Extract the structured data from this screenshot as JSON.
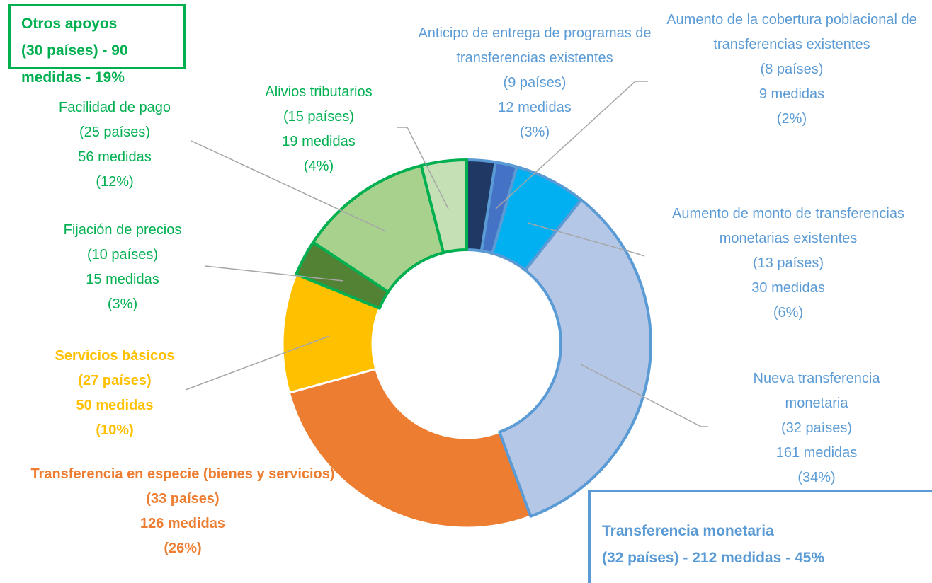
{
  "chart_data": {
    "type": "donut",
    "categories": [
      "Anticipo de entrega de programas de transferencias existentes",
      "Aumento de la cobertura poblacional de transferencias existentes",
      "Aumento de monto de transferencias monetarias existentes",
      "Nueva transferencia monetaria",
      "Transferencia en especie (bienes y servicios)",
      "Servicios básicos",
      "Fijación de precios",
      "Facilidad de pago",
      "Alivios tributarios"
    ],
    "countries": [
      "(9 países)",
      "(8 países)",
      "(13 países)",
      "(32 países)",
      "(33 países)",
      "(27 países)",
      "(10 países)",
      "(25 países)",
      "(15 países)"
    ],
    "values": [
      12,
      9,
      30,
      161,
      126,
      50,
      15,
      56,
      19
    ],
    "value_labels": [
      "12 medidas",
      "9 medidas",
      "30 medidas",
      "161 medidas",
      "126 medidas",
      "50 medidas",
      "15 medidas",
      "56 medidas",
      "19 medidas"
    ],
    "percent_labels": [
      "(3%)",
      "(2%)",
      "(6%)",
      "(34%)",
      "(26%)",
      "(10%)",
      "(3%)",
      "(12%)",
      "(4%)"
    ],
    "colors": [
      "#1f3864",
      "#4472c4",
      "#00b0f0",
      "#b4c7e7",
      "#ed7d31",
      "#ffc000",
      "#548235",
      "#a9d18e",
      "#c5e0b4"
    ],
    "border_colors": [
      "#5b9bd5",
      "#5b9bd5",
      "#5b9bd5",
      "#5b9bd5",
      "#ffffff",
      "#ffffff",
      "#00b050",
      "#00b050",
      "#00b050"
    ],
    "label_colors": [
      "#5b9bd5",
      "#5b9bd5",
      "#5b9bd5",
      "#5b9bd5",
      "#ed7d31",
      "#ffc000",
      "#00b050",
      "#00b050",
      "#00b050"
    ],
    "label_bold": [
      false,
      false,
      false,
      false,
      true,
      true,
      false,
      false,
      false
    ],
    "groups": [
      {
        "title": "Otros apoyos",
        "detail": "(30 países) - 90 medidas - 19%",
        "color": "#00b050"
      },
      {
        "title": "Transferencia monetaria",
        "detail": "(32 países) - 212 medidas - 45%",
        "color": "#5b9bd5"
      }
    ]
  }
}
